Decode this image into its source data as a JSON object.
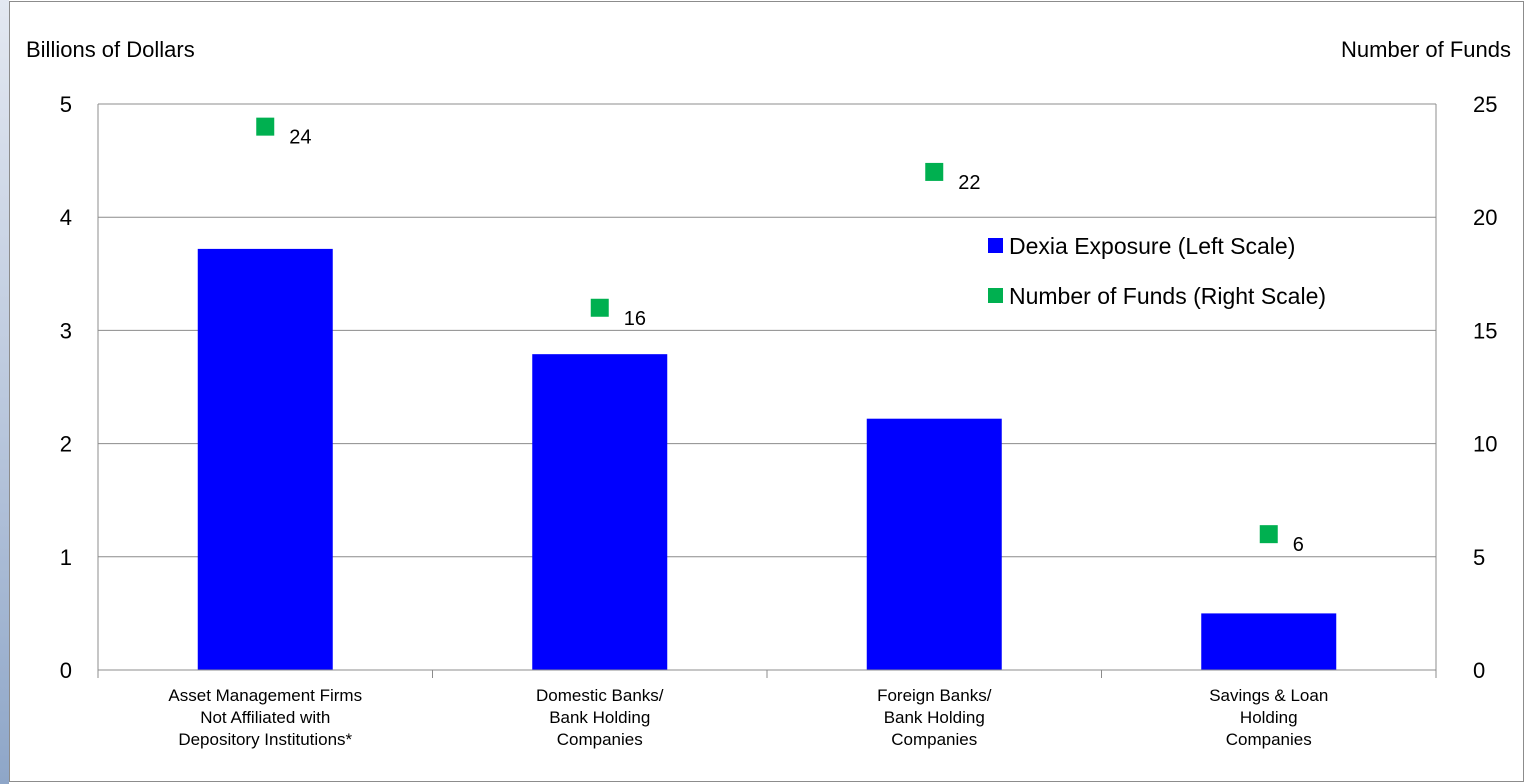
{
  "chart_data": {
    "type": "bar",
    "categories": [
      [
        "Asset Management Firms",
        "Not Affiliated with",
        "Depository Institutions*"
      ],
      [
        "Domestic Banks/",
        "Bank Holding",
        "Companies"
      ],
      [
        "Foreign Banks/",
        "Bank Holding",
        "Companies"
      ],
      [
        "Savings & Loan",
        "Holding",
        "Companies"
      ]
    ],
    "series": [
      {
        "name": "Dexia Exposure (Left Scale)",
        "axis": "left",
        "kind": "bar",
        "color": "#0000ff",
        "values": [
          3.72,
          2.79,
          2.22,
          0.5
        ]
      },
      {
        "name": "Number of Funds (Right Scale)",
        "axis": "right",
        "kind": "marker",
        "color": "#00b050",
        "values": [
          24,
          16,
          22,
          6
        ],
        "labels": [
          "24",
          "16",
          "22",
          "6"
        ]
      }
    ],
    "ylabel_left": "Billions of Dollars",
    "ylabel_right": "Number of Funds",
    "ylim_left": [
      0,
      5
    ],
    "ylim_right": [
      0,
      25
    ],
    "yticks_left": [
      "0",
      "1",
      "2",
      "3",
      "4",
      "5"
    ],
    "yticks_right": [
      "0",
      "5",
      "10",
      "15",
      "20",
      "25"
    ],
    "grid": true,
    "legend_position": "top-right"
  }
}
